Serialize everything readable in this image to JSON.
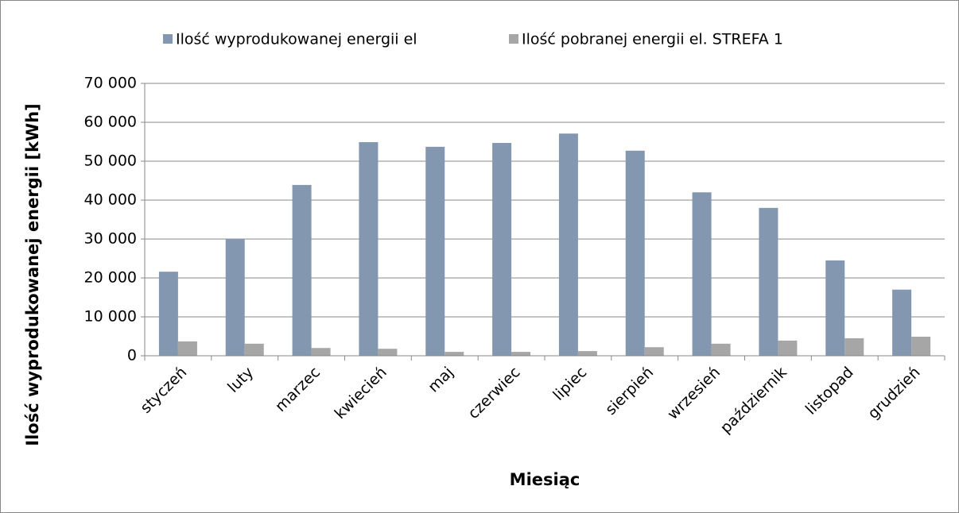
{
  "chart_data": {
    "type": "bar",
    "xlabel": "Miesiąc",
    "ylabel": "Ilość wyprodukowanej energii [kWh]",
    "categories": [
      "styczeń",
      "luty",
      "marzec",
      "kwiecień",
      "maj",
      "czerwiec",
      "lipiec",
      "sierpień",
      "wrzesień",
      "październik",
      "listopad",
      "grudzień"
    ],
    "series": [
      {
        "name": "Ilość wyprodukowanej energii el",
        "color": "#8497b0",
        "values": [
          21600,
          30000,
          43900,
          54900,
          53700,
          54700,
          57100,
          52700,
          42000,
          38000,
          24500,
          17000
        ]
      },
      {
        "name": "Ilość pobranej energii el. STREFA 1",
        "color": "#a6a6a6",
        "values": [
          3700,
          3100,
          2000,
          1800,
          1000,
          1000,
          1200,
          2200,
          3100,
          3900,
          4500,
          4900
        ]
      }
    ],
    "ylim": [
      0,
      70000
    ],
    "yticks": [
      0,
      {
        "value": 10000,
        "label": "10 000"
      },
      {
        "value": 20000,
        "label": "20 000"
      },
      {
        "value": 30000,
        "label": "30 000"
      },
      {
        "value": 40000,
        "label": "40 000"
      },
      {
        "value": 50000,
        "label": "50 000"
      },
      {
        "value": 60000,
        "label": "60 000"
      },
      {
        "value": 70000,
        "label": "70 000"
      }
    ],
    "grid": true,
    "legend": "top"
  }
}
